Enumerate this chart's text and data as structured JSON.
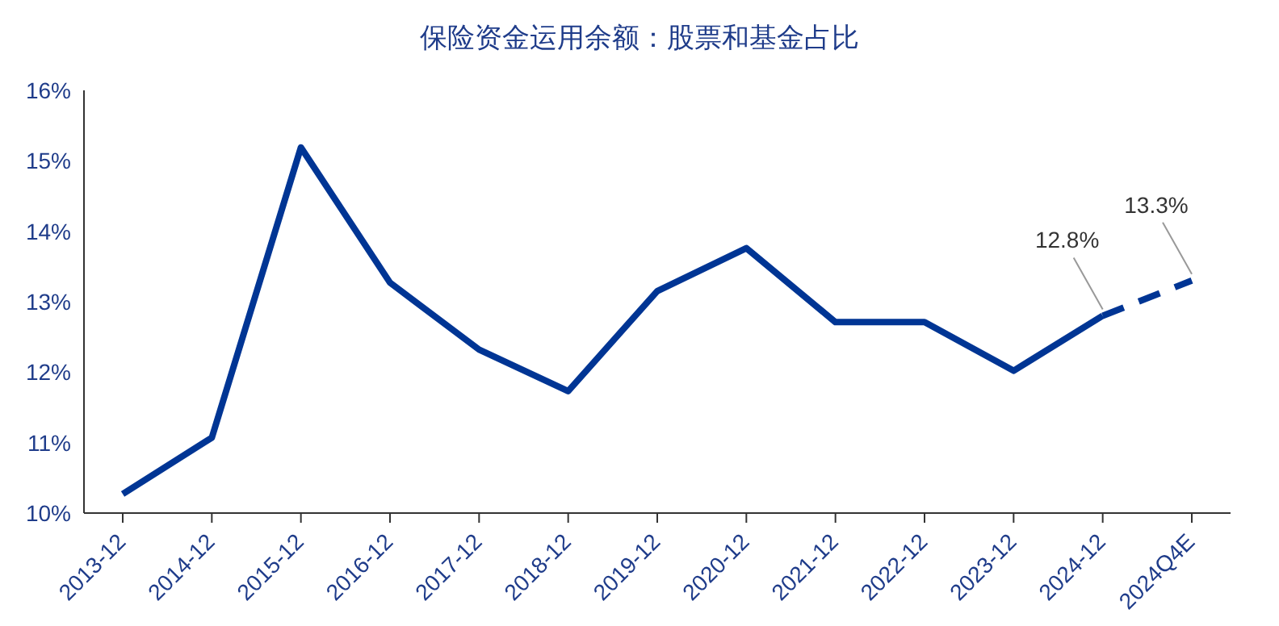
{
  "chart_data": {
    "type": "line",
    "title": "保险资金运用余额：股票和基金占比",
    "categories": [
      "2013-12",
      "2014-12",
      "2015-12",
      "2016-12",
      "2017-12",
      "2018-12",
      "2019-12",
      "2020-12",
      "2021-12",
      "2022-12",
      "2023-12",
      "2024-12",
      "2024Q4E"
    ],
    "series": [
      {
        "color": "#003594",
        "line_style": "solid",
        "values": [
          10.27,
          11.07,
          15.19,
          13.27,
          12.32,
          11.73,
          13.15,
          13.76,
          12.71,
          12.71,
          12.02,
          12.8,
          null
        ]
      },
      {
        "color": "#003594",
        "line_style": "dashed",
        "values": [
          null,
          null,
          null,
          null,
          null,
          null,
          null,
          null,
          null,
          null,
          null,
          12.8,
          13.3
        ],
        "value_labels": [
          null,
          null,
          null,
          null,
          null,
          null,
          null,
          null,
          null,
          null,
          null,
          "12.8%",
          "13.3%"
        ]
      }
    ],
    "ylim": [
      10,
      16
    ],
    "yticks": [
      {
        "value": 10,
        "label": "10%"
      },
      {
        "value": 11,
        "label": "11%"
      },
      {
        "value": 12,
        "label": "12%"
      },
      {
        "value": 13,
        "label": "13%"
      },
      {
        "value": 14,
        "label": "14%"
      },
      {
        "value": 15,
        "label": "15%"
      },
      {
        "value": 16,
        "label": "16%"
      }
    ],
    "grid": false,
    "legend": false,
    "marker": "none"
  }
}
